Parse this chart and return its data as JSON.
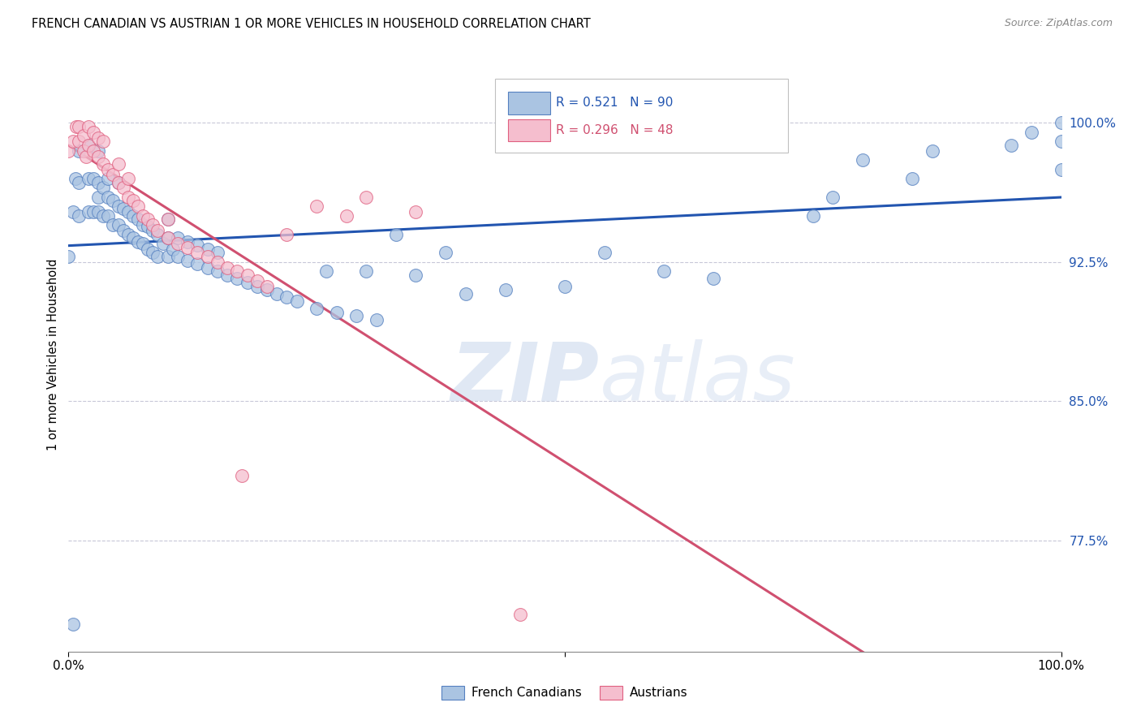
{
  "title": "FRENCH CANADIAN VS AUSTRIAN 1 OR MORE VEHICLES IN HOUSEHOLD CORRELATION CHART",
  "source": "Source: ZipAtlas.com",
  "ylabel": "1 or more Vehicles in Household",
  "ytick_labels": [
    "100.0%",
    "92.5%",
    "85.0%",
    "77.5%"
  ],
  "ytick_values": [
    1.0,
    0.925,
    0.85,
    0.775
  ],
  "xlim": [
    0.0,
    1.0
  ],
  "ylim": [
    0.715,
    1.035
  ],
  "blue_fill": "#aac4e2",
  "blue_edge": "#5580c0",
  "pink_fill": "#f5bece",
  "pink_edge": "#e06080",
  "blue_line_color": "#2255b0",
  "pink_line_color": "#d05070",
  "R_blue": 0.521,
  "N_blue": 90,
  "R_pink": 0.296,
  "N_pink": 48,
  "watermark_zip": "ZIP",
  "watermark_atlas": "atlas",
  "blue_x": [
    0.0,
    0.005,
    0.007,
    0.01,
    0.01,
    0.01,
    0.02,
    0.02,
    0.02,
    0.025,
    0.025,
    0.03,
    0.03,
    0.03,
    0.03,
    0.035,
    0.035,
    0.04,
    0.04,
    0.04,
    0.045,
    0.045,
    0.05,
    0.05,
    0.05,
    0.055,
    0.055,
    0.06,
    0.06,
    0.065,
    0.065,
    0.07,
    0.07,
    0.075,
    0.075,
    0.08,
    0.08,
    0.085,
    0.085,
    0.09,
    0.09,
    0.095,
    0.1,
    0.1,
    0.1,
    0.105,
    0.11,
    0.11,
    0.12,
    0.12,
    0.13,
    0.13,
    0.14,
    0.14,
    0.15,
    0.15,
    0.16,
    0.17,
    0.18,
    0.19,
    0.2,
    0.21,
    0.22,
    0.23,
    0.25,
    0.26,
    0.27,
    0.29,
    0.3,
    0.31,
    0.33,
    0.35,
    0.38,
    0.4,
    0.44,
    0.5,
    0.54,
    0.6,
    0.65,
    0.75,
    0.77,
    0.8,
    0.85,
    0.87,
    0.95,
    0.97,
    1.0,
    1.0,
    1.0,
    0.005
  ],
  "blue_y": [
    0.928,
    0.952,
    0.97,
    0.95,
    0.968,
    0.985,
    0.952,
    0.97,
    0.988,
    0.952,
    0.97,
    0.952,
    0.96,
    0.968,
    0.985,
    0.95,
    0.965,
    0.95,
    0.96,
    0.97,
    0.945,
    0.958,
    0.945,
    0.955,
    0.968,
    0.942,
    0.954,
    0.94,
    0.952,
    0.938,
    0.95,
    0.936,
    0.948,
    0.935,
    0.945,
    0.932,
    0.944,
    0.93,
    0.942,
    0.928,
    0.94,
    0.935,
    0.928,
    0.938,
    0.948,
    0.932,
    0.928,
    0.938,
    0.926,
    0.936,
    0.924,
    0.934,
    0.922,
    0.932,
    0.92,
    0.93,
    0.918,
    0.916,
    0.914,
    0.912,
    0.91,
    0.908,
    0.906,
    0.904,
    0.9,
    0.92,
    0.898,
    0.896,
    0.92,
    0.894,
    0.94,
    0.918,
    0.93,
    0.908,
    0.91,
    0.912,
    0.93,
    0.92,
    0.916,
    0.95,
    0.96,
    0.98,
    0.97,
    0.985,
    0.988,
    0.995,
    0.99,
    1.0,
    0.975,
    0.73
  ],
  "pink_x": [
    0.0,
    0.005,
    0.008,
    0.01,
    0.01,
    0.015,
    0.015,
    0.018,
    0.02,
    0.02,
    0.025,
    0.025,
    0.03,
    0.03,
    0.035,
    0.035,
    0.04,
    0.045,
    0.05,
    0.05,
    0.055,
    0.06,
    0.06,
    0.065,
    0.07,
    0.075,
    0.08,
    0.085,
    0.09,
    0.1,
    0.1,
    0.11,
    0.12,
    0.13,
    0.14,
    0.15,
    0.16,
    0.17,
    0.18,
    0.19,
    0.2,
    0.22,
    0.25,
    0.28,
    0.3,
    0.35,
    0.175,
    0.455
  ],
  "pink_y": [
    0.985,
    0.99,
    0.998,
    0.99,
    0.998,
    0.985,
    0.993,
    0.982,
    0.988,
    0.998,
    0.985,
    0.995,
    0.982,
    0.992,
    0.978,
    0.99,
    0.975,
    0.972,
    0.968,
    0.978,
    0.965,
    0.96,
    0.97,
    0.958,
    0.955,
    0.95,
    0.948,
    0.945,
    0.942,
    0.938,
    0.948,
    0.935,
    0.933,
    0.93,
    0.928,
    0.925,
    0.922,
    0.92,
    0.918,
    0.915,
    0.912,
    0.94,
    0.955,
    0.95,
    0.96,
    0.952,
    0.81,
    0.735
  ]
}
